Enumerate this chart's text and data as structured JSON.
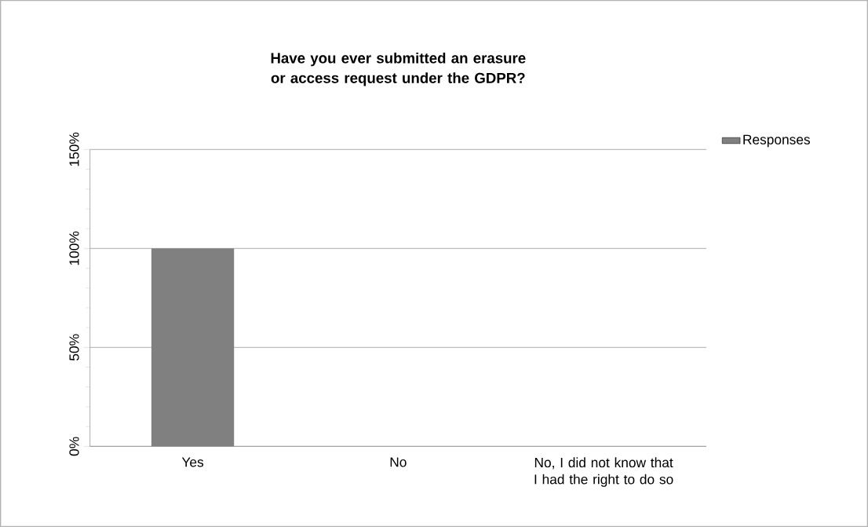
{
  "chart_data": {
    "type": "bar",
    "title": "Have you ever submitted an erasure or access request under the GDPR?",
    "categories": [
      "Yes",
      "No",
      "No, I did not know that I had the right to do so"
    ],
    "series": [
      {
        "name": "Responses",
        "color": "#808080",
        "values": [
          100,
          0,
          0
        ]
      }
    ],
    "ylim": [
      0,
      150
    ],
    "yticks": [
      {
        "value": 0,
        "label": "0%"
      },
      {
        "value": 50,
        "label": "50%"
      },
      {
        "value": 100,
        "label": "100%"
      },
      {
        "value": 150,
        "label": "150%"
      }
    ],
    "grid": "y",
    "legend": "right"
  }
}
